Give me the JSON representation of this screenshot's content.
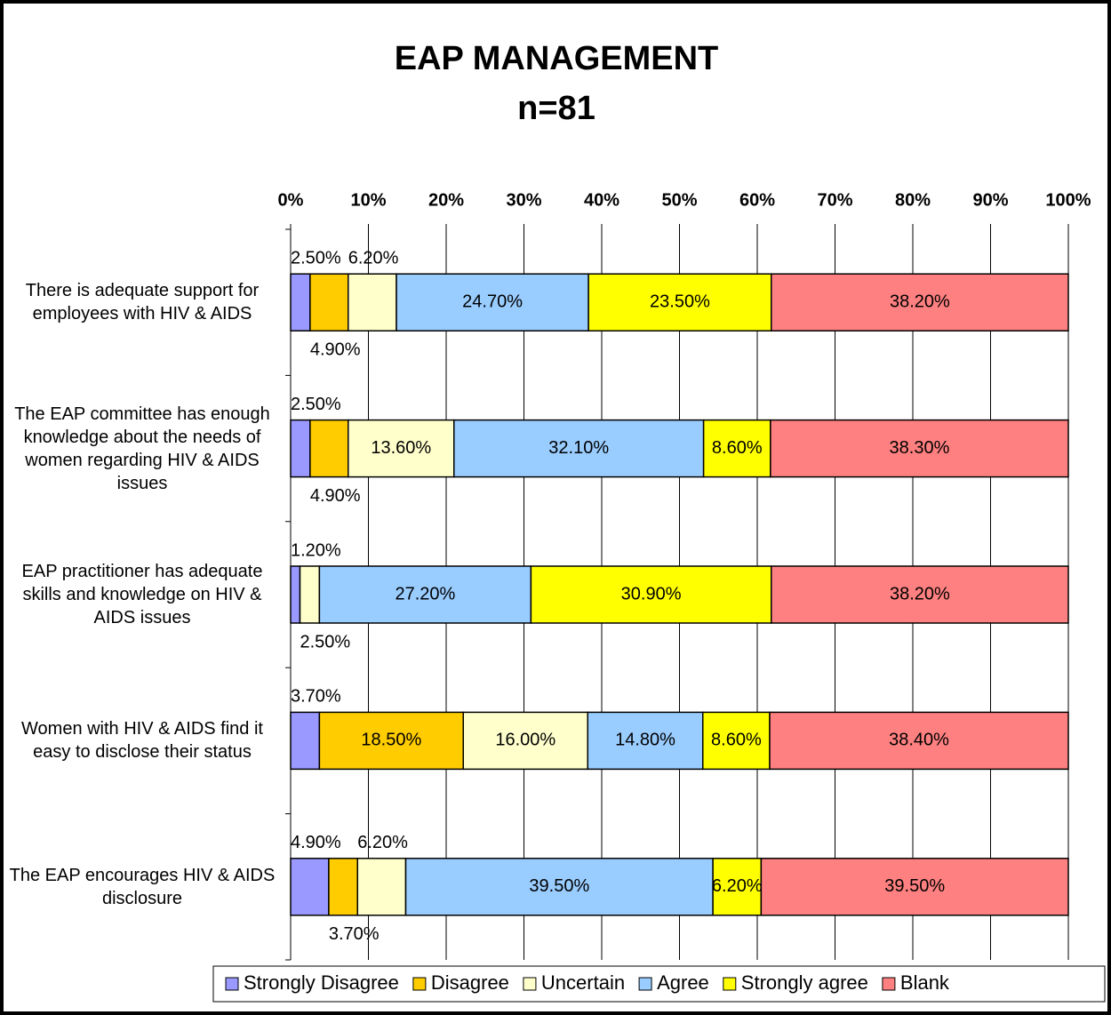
{
  "chart_data": {
    "type": "stacked_bar_horizontal",
    "title": "EAP MANAGEMENT",
    "subtitle": "n=81",
    "categories": [
      "There is adequate support for employees with HIV & AIDS",
      "The EAP committee has enough knowledge about the needs of women regarding HIV & AIDS issues",
      "EAP practitioner has adequate skills and knowledge on HIV & AIDS issues",
      "Women with HIV & AIDS find it easy to disclose their status",
      "The EAP encourages HIV & AIDS disclosure"
    ],
    "series": [
      {
        "name": "Strongly Disagree",
        "color": "#9999ff",
        "values": [
          2.5,
          2.5,
          1.2,
          3.7,
          4.9
        ],
        "value_labels": [
          "2.50%",
          "2.50%",
          "1.20%",
          "3.70%",
          "4.90%"
        ]
      },
      {
        "name": "Disagree",
        "color": "#ffcc00",
        "values": [
          4.9,
          4.9,
          null,
          18.5,
          3.7
        ],
        "value_labels": [
          "4.90%",
          "4.90%",
          null,
          "18.50%",
          "3.70%"
        ]
      },
      {
        "name": "Uncertain",
        "color": "#ffffcc",
        "values": [
          6.2,
          13.6,
          2.5,
          16.0,
          6.2
        ],
        "value_labels": [
          "6.20%",
          "13.60%",
          "2.50%",
          "16.00%",
          "6.20%"
        ]
      },
      {
        "name": "Agree",
        "color": "#99ccff",
        "values": [
          24.7,
          32.1,
          27.2,
          14.8,
          39.5
        ],
        "value_labels": [
          "24.70%",
          "32.10%",
          "27.20%",
          "14.80%",
          "39.50%"
        ]
      },
      {
        "name": "Strongly agree",
        "color": "#ffff00",
        "values": [
          23.5,
          8.6,
          30.9,
          8.6,
          6.2
        ],
        "value_labels": [
          "23.50%",
          "8.60%",
          "30.90%",
          "8.60%",
          "6.20%"
        ]
      },
      {
        "name": "Blank",
        "color": "#ff8080",
        "values": [
          38.2,
          38.3,
          38.2,
          38.4,
          39.5
        ],
        "value_labels": [
          "38.20%",
          "38.30%",
          "38.20%",
          "38.40%",
          "39.50%"
        ]
      }
    ],
    "xlim": [
      0,
      100
    ],
    "xticks": [
      {
        "value": 0,
        "label": "0%"
      },
      {
        "value": 10,
        "label": "10%"
      },
      {
        "value": 20,
        "label": "20%"
      },
      {
        "value": 30,
        "label": "30%"
      },
      {
        "value": 40,
        "label": "40%"
      },
      {
        "value": 50,
        "label": "50%"
      },
      {
        "value": 60,
        "label": "60%"
      },
      {
        "value": 70,
        "label": "70%"
      },
      {
        "value": 80,
        "label": "80%"
      },
      {
        "value": 90,
        "label": "90%"
      },
      {
        "value": 100,
        "label": "100%"
      }
    ],
    "grid": true,
    "legend": "bottom"
  }
}
